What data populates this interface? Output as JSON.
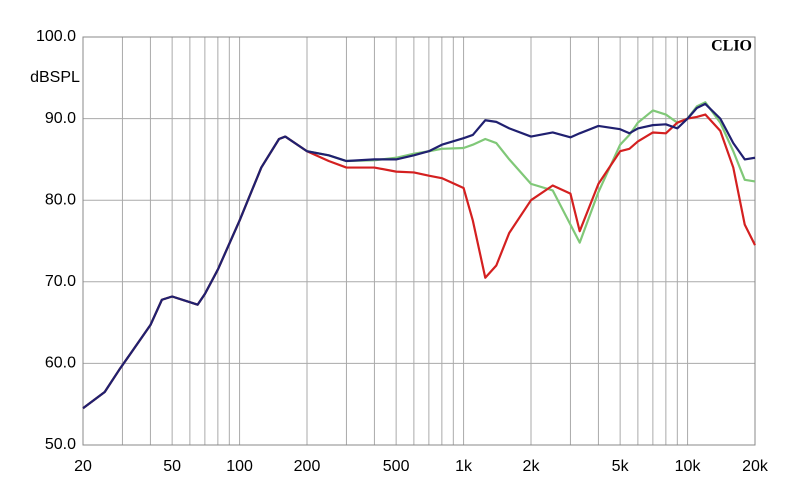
{
  "chart_data": {
    "type": "line",
    "ylabel": "dBSPL",
    "annotation": "CLIO",
    "xscale": "log",
    "grid": true,
    "xlim": [
      20,
      20000
    ],
    "ylim": [
      50,
      100
    ],
    "xticks": [
      20,
      50,
      100,
      200,
      500,
      {
        "value": 1000,
        "label": "1k"
      },
      {
        "value": 2000,
        "label": "2k"
      },
      {
        "value": 5000,
        "label": "5k"
      },
      {
        "value": 10000,
        "label": "10k"
      },
      {
        "value": 20000,
        "label": "20k"
      }
    ],
    "x_minor_ticks": [
      30,
      40,
      60,
      70,
      80,
      90,
      300,
      400,
      600,
      700,
      800,
      900,
      3000,
      4000,
      6000,
      7000,
      8000,
      9000
    ],
    "yticks": [
      {
        "value": 50,
        "label": "50.0"
      },
      {
        "value": 60,
        "label": "60.0"
      },
      {
        "value": 70,
        "label": "70.0"
      },
      {
        "value": 80,
        "label": "80.0"
      },
      {
        "value": 90,
        "label": "90.0"
      },
      {
        "value": 100,
        "label": "100.0"
      }
    ],
    "x": [
      20,
      25,
      29,
      40,
      45,
      50,
      60,
      65,
      70,
      80,
      100,
      125,
      150,
      160,
      200,
      250,
      300,
      400,
      500,
      600,
      700,
      800,
      1000,
      1100,
      1250,
      1400,
      1600,
      2000,
      2500,
      3000,
      3300,
      4000,
      5000,
      5500,
      6000,
      7000,
      8000,
      9000,
      10000,
      11000,
      12000,
      14000,
      16000,
      18000,
      20000
    ],
    "series": [
      {
        "color": "#80c878",
        "values": [
          54.5,
          56.5,
          59.2,
          64.7,
          67.8,
          68.2,
          67.5,
          67.2,
          68.5,
          71.5,
          77.5,
          84,
          87.5,
          87.8,
          86,
          85.5,
          84.8,
          84.9,
          85.2,
          85.7,
          86,
          86.3,
          86.4,
          86.8,
          87.5,
          87,
          85,
          82,
          81.2,
          77,
          74.8,
          81,
          86.8,
          88,
          89.5,
          91,
          90.5,
          89.5,
          90,
          91.5,
          92,
          89.5,
          86,
          82.5,
          82.3
        ]
      },
      {
        "color": "#d42020",
        "values": [
          54.5,
          56.5,
          59.2,
          64.7,
          67.8,
          68.2,
          67.5,
          67.2,
          68.5,
          71.5,
          77.5,
          84,
          87.5,
          87.8,
          86,
          84.8,
          84,
          84,
          83.5,
          83.4,
          83,
          82.7,
          81.5,
          77.5,
          70.5,
          72,
          76,
          80,
          81.8,
          80.8,
          76.2,
          82,
          86,
          86.3,
          87.2,
          88.3,
          88.2,
          89.5,
          90,
          90.2,
          90.5,
          88.5,
          84,
          77,
          74.5
        ]
      },
      {
        "color": "#202070",
        "values": [
          54.5,
          56.5,
          59.2,
          64.7,
          67.8,
          68.2,
          67.5,
          67.2,
          68.5,
          71.5,
          77.5,
          84,
          87.5,
          87.8,
          86,
          85.5,
          84.8,
          85,
          85,
          85.5,
          86,
          86.8,
          87.6,
          88,
          89.8,
          89.6,
          88.8,
          87.8,
          88.3,
          87.7,
          88.2,
          89.1,
          88.7,
          88.2,
          88.8,
          89.2,
          89.3,
          88.8,
          90,
          91.3,
          91.8,
          90,
          87,
          85,
          85.2
        ]
      }
    ]
  }
}
